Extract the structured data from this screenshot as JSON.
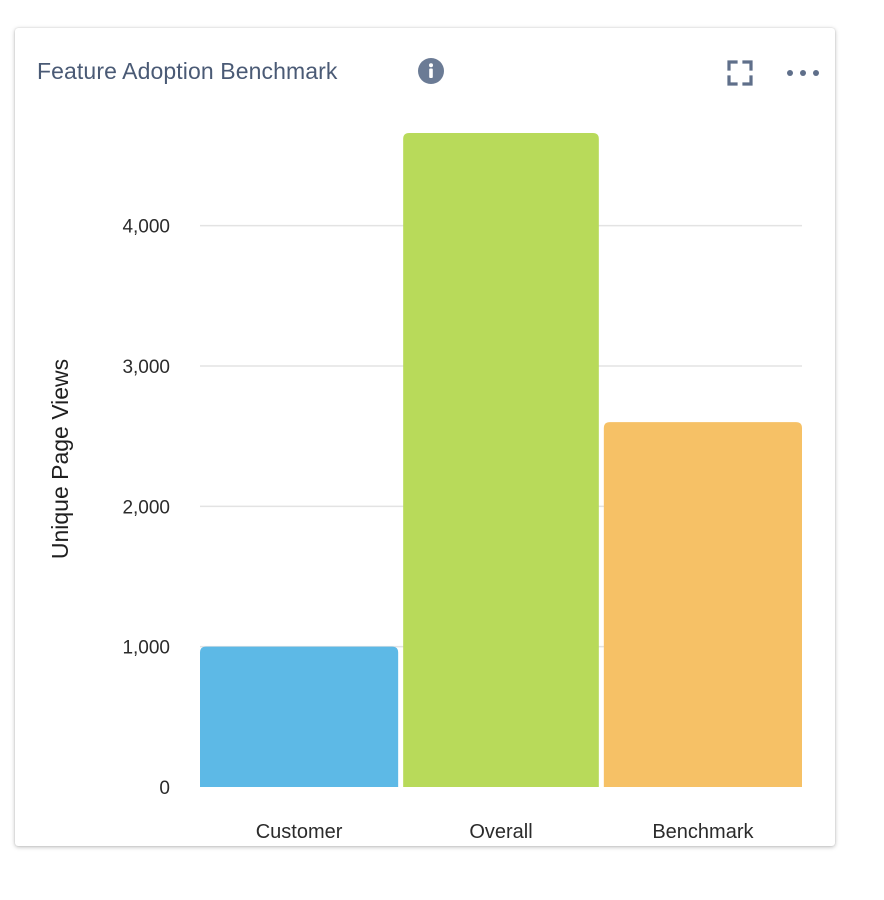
{
  "widget": {
    "title": "Feature Adoption Benchmark",
    "info_icon": "info-circle-icon",
    "expand_icon": "expand-icon",
    "more_icon": "more-horizontal-icon"
  },
  "colors": {
    "title": "#4a5a75",
    "icon": "#5f6f8a",
    "grid": "#e3e3e3",
    "axis_text": "#2b2b2b"
  },
  "chart_data": {
    "type": "bar",
    "title": "Feature Adoption Benchmark",
    "xlabel": "",
    "ylabel": "Unique Page Views",
    "categories": [
      "Customer",
      "Overall",
      "Benchmark"
    ],
    "values": [
      1000,
      4660,
      2600
    ],
    "colors": [
      "#5db9e6",
      "#b8da5a",
      "#f6c166"
    ],
    "ylim": [
      0,
      4660
    ],
    "yticks": [
      0,
      1000,
      2000,
      3000,
      4000
    ],
    "ytick_labels": [
      "0",
      "1,000",
      "2,000",
      "3,000",
      "4,000"
    ],
    "grid": true,
    "legend": "none"
  }
}
